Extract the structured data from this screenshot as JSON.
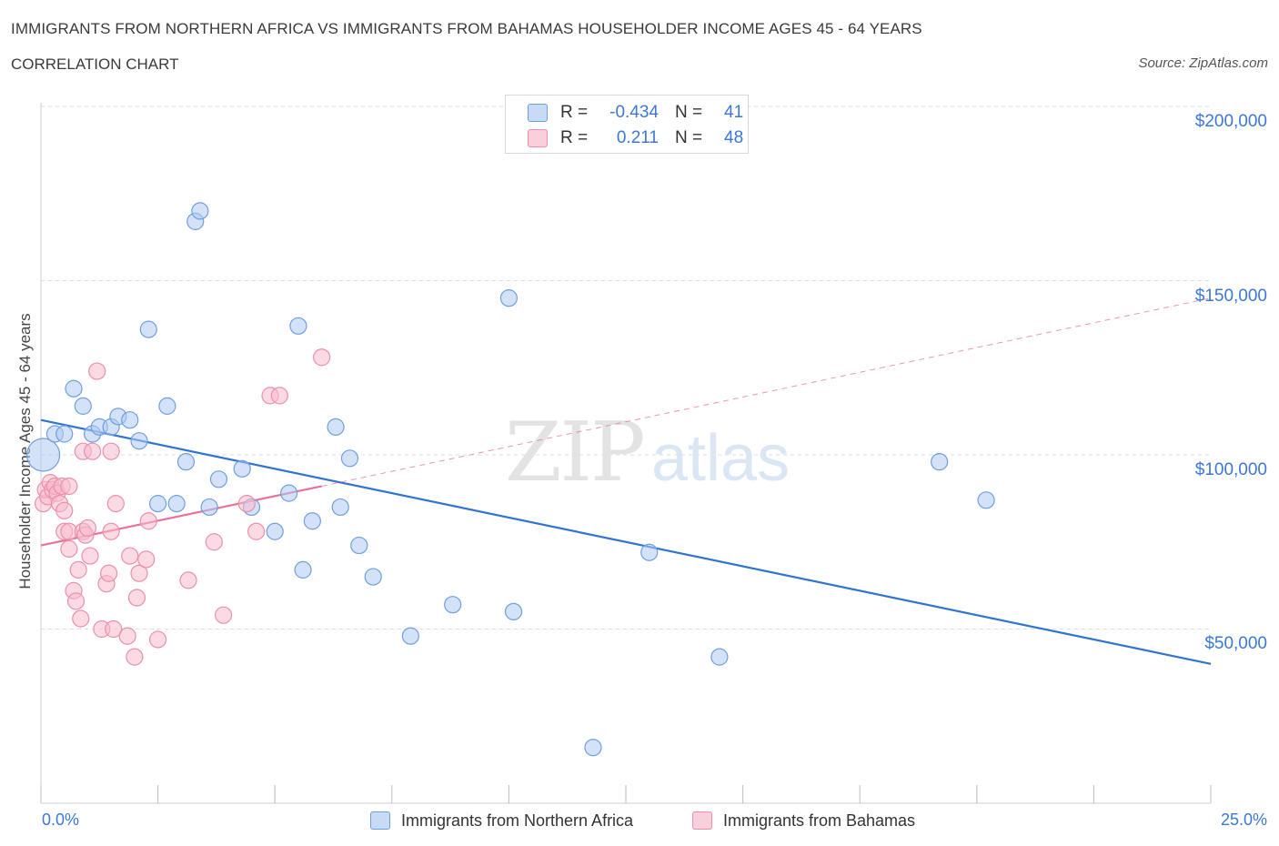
{
  "header": {
    "title": "IMMIGRANTS FROM NORTHERN AFRICA VS IMMIGRANTS FROM BAHAMAS HOUSEHOLDER INCOME AGES 45 - 64 YEARS",
    "subtitle": "CORRELATION CHART",
    "source": "Source: ZipAtlas.com"
  },
  "legend": {
    "rows": [
      {
        "r_label": "R =",
        "r_value": "-0.434",
        "n_label": "N =",
        "n_value": "41"
      },
      {
        "r_label": "R =",
        "r_value": "0.211",
        "n_label": "N =",
        "n_value": "48"
      }
    ],
    "bottom": [
      "Immigrants from Northern Africa",
      "Immigrants from Bahamas"
    ]
  },
  "colors": {
    "blue_fill": "#aecbf2",
    "blue_stroke": "#6f9fe0",
    "blue_line": "#2f74d0",
    "pink_fill": "#f7bccd",
    "pink_stroke": "#ec8fab",
    "pink_line": "#e8729a",
    "tick_text": "#3b78d8",
    "grid": "#dddddd"
  },
  "chart_data": {
    "type": "scatter",
    "title": "IMMIGRANTS FROM NORTHERN AFRICA VS IMMIGRANTS FROM BAHAMAS HOUSEHOLDER INCOME AGES 45 - 64 YEARS",
    "xlabel": "",
    "ylabel": "Householder Income Ages 45 - 64 years",
    "xlim": [
      0,
      25
    ],
    "ylim": [
      0,
      200000
    ],
    "x_tick_labels": [
      "0.0%",
      "25.0%"
    ],
    "y_ticks": [
      50000,
      100000,
      150000,
      200000
    ],
    "y_tick_labels": [
      "$50,000",
      "$100,000",
      "$150,000",
      "$200,000"
    ],
    "grid": true,
    "legend_position": "top-center",
    "watermark": "ZIPatlas",
    "series": [
      {
        "name": "Immigrants from Northern Africa",
        "color": "#aecbf2",
        "points": [
          [
            0.05,
            100000
          ],
          [
            0.3,
            106000
          ],
          [
            0.5,
            106000
          ],
          [
            0.7,
            119000
          ],
          [
            0.9,
            114000
          ],
          [
            1.1,
            106000
          ],
          [
            1.25,
            108000
          ],
          [
            1.5,
            108000
          ],
          [
            1.65,
            111000
          ],
          [
            1.9,
            110000
          ],
          [
            2.1,
            104000
          ],
          [
            2.3,
            136000
          ],
          [
            2.5,
            86000
          ],
          [
            2.7,
            114000
          ],
          [
            2.9,
            86000
          ],
          [
            3.1,
            98000
          ],
          [
            3.3,
            167000
          ],
          [
            3.4,
            170000
          ],
          [
            3.6,
            85000
          ],
          [
            3.8,
            93000
          ],
          [
            4.3,
            96000
          ],
          [
            4.5,
            85000
          ],
          [
            5.0,
            78000
          ],
          [
            5.3,
            89000
          ],
          [
            5.5,
            137000
          ],
          [
            5.6,
            67000
          ],
          [
            5.8,
            81000
          ],
          [
            6.3,
            108000
          ],
          [
            6.4,
            85000
          ],
          [
            6.6,
            99000
          ],
          [
            6.8,
            74000
          ],
          [
            7.1,
            65000
          ],
          [
            7.9,
            48000
          ],
          [
            8.8,
            57000
          ],
          [
            10.0,
            145000
          ],
          [
            10.1,
            55000
          ],
          [
            11.8,
            16000
          ],
          [
            13.0,
            72000
          ],
          [
            14.5,
            42000
          ],
          [
            19.2,
            98000
          ],
          [
            20.2,
            87000
          ]
        ]
      },
      {
        "name": "Immigrants from Bahamas",
        "color": "#f7bccd",
        "points": [
          [
            0.05,
            86000
          ],
          [
            0.1,
            90000
          ],
          [
            0.15,
            88000
          ],
          [
            0.2,
            92000
          ],
          [
            0.25,
            90000
          ],
          [
            0.3,
            91000
          ],
          [
            0.35,
            89000
          ],
          [
            0.4,
            86000
          ],
          [
            0.45,
            91000
          ],
          [
            0.5,
            78000
          ],
          [
            0.5,
            84000
          ],
          [
            0.6,
            73000
          ],
          [
            0.6,
            78000
          ],
          [
            0.7,
            61000
          ],
          [
            0.75,
            58000
          ],
          [
            0.8,
            67000
          ],
          [
            0.85,
            53000
          ],
          [
            0.9,
            78000
          ],
          [
            0.95,
            77000
          ],
          [
            1.0,
            79000
          ],
          [
            0.9,
            101000
          ],
          [
            1.05,
            71000
          ],
          [
            1.1,
            101000
          ],
          [
            1.2,
            124000
          ],
          [
            1.3,
            50000
          ],
          [
            1.4,
            63000
          ],
          [
            1.45,
            66000
          ],
          [
            1.5,
            101000
          ],
          [
            1.55,
            50000
          ],
          [
            1.6,
            86000
          ],
          [
            1.85,
            48000
          ],
          [
            1.9,
            71000
          ],
          [
            2.0,
            42000
          ],
          [
            2.05,
            59000
          ],
          [
            2.1,
            66000
          ],
          [
            2.25,
            70000
          ],
          [
            2.3,
            81000
          ],
          [
            2.5,
            47000
          ],
          [
            3.15,
            64000
          ],
          [
            3.7,
            75000
          ],
          [
            3.9,
            54000
          ],
          [
            4.4,
            86000
          ],
          [
            4.6,
            78000
          ],
          [
            4.9,
            117000
          ],
          [
            5.1,
            117000
          ],
          [
            6.0,
            128000
          ],
          [
            0.6,
            91000
          ],
          [
            1.5,
            78000
          ]
        ]
      }
    ],
    "trendlines": [
      {
        "series": "Immigrants from Northern Africa",
        "style": "solid",
        "x": [
          0,
          25
        ],
        "y": [
          110000,
          40000
        ]
      },
      {
        "series": "Immigrants from Bahamas",
        "style": "solid",
        "x": [
          0,
          6.0
        ],
        "y": [
          74000,
          91000
        ]
      },
      {
        "series": "Immigrants from Bahamas",
        "style": "dashed",
        "x": [
          6.0,
          25
        ],
        "y": [
          91000,
          145000
        ]
      }
    ]
  }
}
